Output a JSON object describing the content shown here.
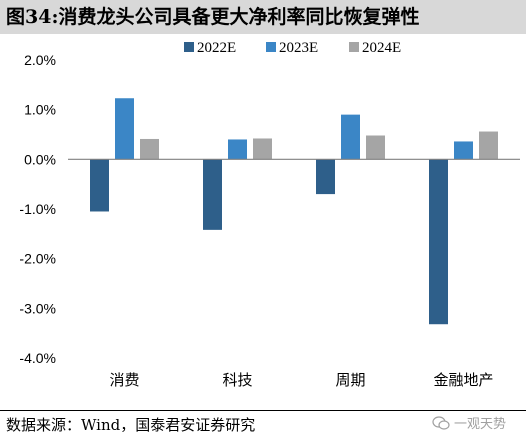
{
  "title": "图34:消费龙头公司具备更大净利率同比恢复弹性",
  "source": "数据来源：Wind，国泰君安证券研究",
  "watermark": "一观天势",
  "chart_data": {
    "type": "bar",
    "categories": [
      "消费",
      "科技",
      "周期",
      "金融地产"
    ],
    "series": [
      {
        "name": "2022E",
        "color": "#2e5f8a",
        "values": [
          -1.05,
          -1.42,
          -0.7,
          -3.32
        ]
      },
      {
        "name": "2023E",
        "color": "#3b86c6",
        "values": [
          1.23,
          0.4,
          0.9,
          0.36
        ]
      },
      {
        "name": "2024E",
        "color": "#a5a5a5",
        "values": [
          0.41,
          0.42,
          0.48,
          0.56
        ]
      }
    ],
    "y_ticks": [
      "2.0%",
      "1.0%",
      "0.0%",
      "-1.0%",
      "-2.0%",
      "-3.0%",
      "-4.0%"
    ],
    "ylim": [
      -4.0,
      2.0
    ],
    "legend_position": "top",
    "grid": false
  }
}
